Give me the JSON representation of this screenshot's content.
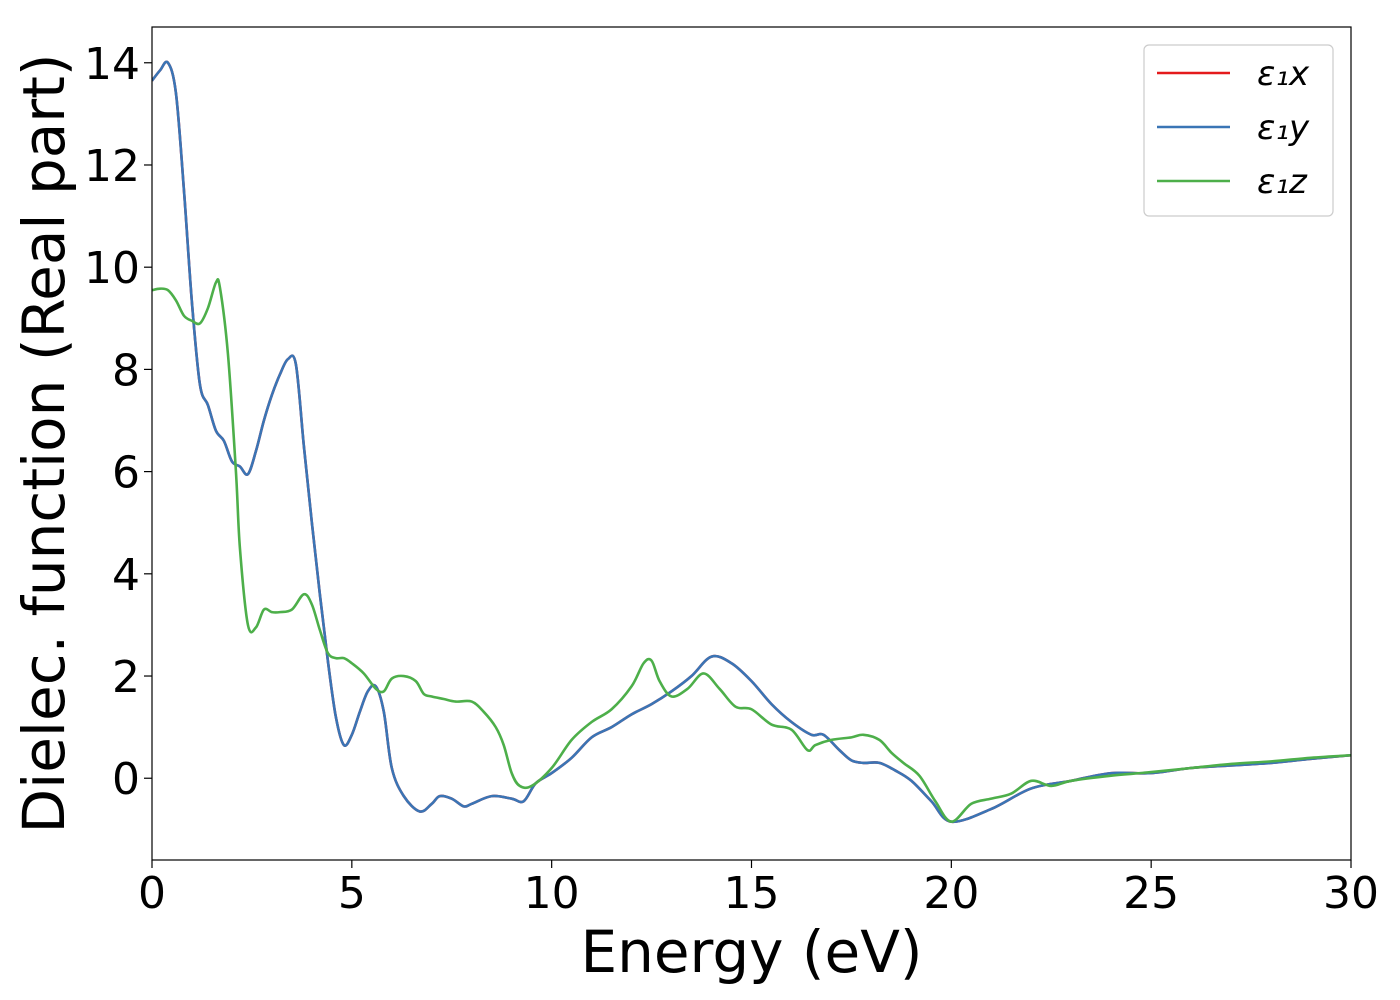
{
  "chart_data": {
    "type": "line",
    "title": "",
    "xlabel": "Energy (eV)",
    "ylabel": "Dielec. function (Real part)",
    "xlim": [
      0,
      30
    ],
    "ylim": [
      -1.6,
      14.7
    ],
    "xticks": [
      0,
      5,
      10,
      15,
      20,
      25,
      30
    ],
    "yticks": [
      0,
      2,
      4,
      6,
      8,
      10,
      12,
      14
    ],
    "grid": false,
    "legend_position": "top-right",
    "series": [
      {
        "name": "ε₁x",
        "color": "#e41a1c",
        "x": [
          0,
          0.2,
          0.4,
          0.6,
          0.8,
          1.0,
          1.2,
          1.4,
          1.6,
          1.8,
          2.0,
          2.2,
          2.4,
          2.6,
          2.8,
          3.0,
          3.2,
          3.4,
          3.6,
          3.8,
          4.0,
          4.2,
          4.4,
          4.6,
          4.8,
          5.0,
          5.2,
          5.4,
          5.6,
          5.8,
          6.0,
          6.3,
          6.7,
          7.0,
          7.2,
          7.5,
          7.8,
          8.0,
          8.5,
          9.0,
          9.3,
          9.6,
          10.0,
          10.5,
          11.0,
          11.5,
          12.0,
          12.5,
          13.0,
          13.5,
          14.0,
          14.5,
          15.0,
          15.5,
          16.0,
          16.5,
          16.8,
          17.2,
          17.5,
          17.8,
          18.2,
          18.6,
          19.0,
          19.5,
          20.0,
          21.0,
          22.0,
          23.0,
          24.0,
          25.0,
          26.0,
          27.0,
          28.0,
          29.0,
          30.0
        ],
        "values": [
          13.65,
          13.85,
          14.0,
          13.4,
          11.5,
          9.3,
          7.7,
          7.3,
          6.8,
          6.6,
          6.2,
          6.1,
          5.95,
          6.4,
          7.0,
          7.5,
          7.9,
          8.2,
          8.1,
          6.5,
          5.0,
          3.6,
          2.3,
          1.2,
          0.65,
          0.85,
          1.3,
          1.7,
          1.8,
          1.3,
          0.2,
          -0.35,
          -0.65,
          -0.5,
          -0.35,
          -0.4,
          -0.55,
          -0.5,
          -0.35,
          -0.4,
          -0.45,
          -0.1,
          0.1,
          0.4,
          0.8,
          1.0,
          1.25,
          1.45,
          1.7,
          2.0,
          2.38,
          2.25,
          1.9,
          1.45,
          1.1,
          0.85,
          0.85,
          0.55,
          0.35,
          0.3,
          0.3,
          0.15,
          -0.05,
          -0.45,
          -0.85,
          -0.6,
          -0.2,
          -0.05,
          0.1,
          0.1,
          0.2,
          0.25,
          0.3,
          0.38,
          0.45
        ]
      },
      {
        "name": "ε₁y",
        "color": "#3a75b5",
        "x": [
          0,
          0.2,
          0.4,
          0.6,
          0.8,
          1.0,
          1.2,
          1.4,
          1.6,
          1.8,
          2.0,
          2.2,
          2.4,
          2.6,
          2.8,
          3.0,
          3.2,
          3.4,
          3.6,
          3.8,
          4.0,
          4.2,
          4.4,
          4.6,
          4.8,
          5.0,
          5.2,
          5.4,
          5.6,
          5.8,
          6.0,
          6.3,
          6.7,
          7.0,
          7.2,
          7.5,
          7.8,
          8.0,
          8.5,
          9.0,
          9.3,
          9.6,
          10.0,
          10.5,
          11.0,
          11.5,
          12.0,
          12.5,
          13.0,
          13.5,
          14.0,
          14.5,
          15.0,
          15.5,
          16.0,
          16.5,
          16.8,
          17.2,
          17.5,
          17.8,
          18.2,
          18.6,
          19.0,
          19.5,
          20.0,
          21.0,
          22.0,
          23.0,
          24.0,
          25.0,
          26.0,
          27.0,
          28.0,
          29.0,
          30.0
        ],
        "values": [
          13.65,
          13.85,
          14.0,
          13.4,
          11.5,
          9.3,
          7.7,
          7.3,
          6.8,
          6.6,
          6.2,
          6.1,
          5.95,
          6.4,
          7.0,
          7.5,
          7.9,
          8.2,
          8.1,
          6.5,
          5.0,
          3.6,
          2.3,
          1.2,
          0.65,
          0.85,
          1.3,
          1.7,
          1.8,
          1.3,
          0.2,
          -0.35,
          -0.65,
          -0.5,
          -0.35,
          -0.4,
          -0.55,
          -0.5,
          -0.35,
          -0.4,
          -0.45,
          -0.1,
          0.1,
          0.4,
          0.8,
          1.0,
          1.25,
          1.45,
          1.7,
          2.0,
          2.38,
          2.25,
          1.9,
          1.45,
          1.1,
          0.85,
          0.85,
          0.55,
          0.35,
          0.3,
          0.3,
          0.15,
          -0.05,
          -0.45,
          -0.85,
          -0.6,
          -0.2,
          -0.05,
          0.1,
          0.1,
          0.2,
          0.25,
          0.3,
          0.38,
          0.45
        ]
      },
      {
        "name": "ε₁z",
        "color": "#4daf4a",
        "x": [
          0,
          0.2,
          0.4,
          0.6,
          0.8,
          1.0,
          1.2,
          1.4,
          1.6,
          1.7,
          1.9,
          2.1,
          2.2,
          2.4,
          2.6,
          2.8,
          3.0,
          3.2,
          3.5,
          3.8,
          4.0,
          4.2,
          4.4,
          4.6,
          4.8,
          5.0,
          5.3,
          5.6,
          5.8,
          6.0,
          6.3,
          6.6,
          6.8,
          7.0,
          7.3,
          7.6,
          8.0,
          8.3,
          8.6,
          8.8,
          9.0,
          9.2,
          9.5,
          10.0,
          10.5,
          11.0,
          11.5,
          12.0,
          12.3,
          12.5,
          12.7,
          13.0,
          13.4,
          13.8,
          14.2,
          14.6,
          15.0,
          15.5,
          16.0,
          16.4,
          16.6,
          17.0,
          17.5,
          17.8,
          18.2,
          18.5,
          18.8,
          19.2,
          19.6,
          20.0,
          20.5,
          21.0,
          21.5,
          22.0,
          22.5,
          23.0,
          24.0,
          25.0,
          26.0,
          27.0,
          28.0,
          29.0,
          30.0
        ],
        "values": [
          9.55,
          9.58,
          9.55,
          9.35,
          9.05,
          8.95,
          8.9,
          9.2,
          9.7,
          9.6,
          8.3,
          6.0,
          4.5,
          3.0,
          2.95,
          3.3,
          3.25,
          3.25,
          3.3,
          3.6,
          3.4,
          2.9,
          2.45,
          2.35,
          2.35,
          2.25,
          2.05,
          1.75,
          1.7,
          1.95,
          2.0,
          1.9,
          1.65,
          1.6,
          1.55,
          1.5,
          1.5,
          1.3,
          1.0,
          0.65,
          0.1,
          -0.15,
          -0.15,
          0.2,
          0.75,
          1.1,
          1.35,
          1.8,
          2.25,
          2.3,
          1.9,
          1.6,
          1.75,
          2.05,
          1.75,
          1.4,
          1.35,
          1.05,
          0.95,
          0.55,
          0.65,
          0.75,
          0.8,
          0.85,
          0.75,
          0.5,
          0.3,
          0.05,
          -0.45,
          -0.85,
          -0.5,
          -0.4,
          -0.3,
          -0.05,
          -0.15,
          -0.05,
          0.05,
          0.12,
          0.2,
          0.28,
          0.33,
          0.4,
          0.45
        ]
      }
    ]
  }
}
